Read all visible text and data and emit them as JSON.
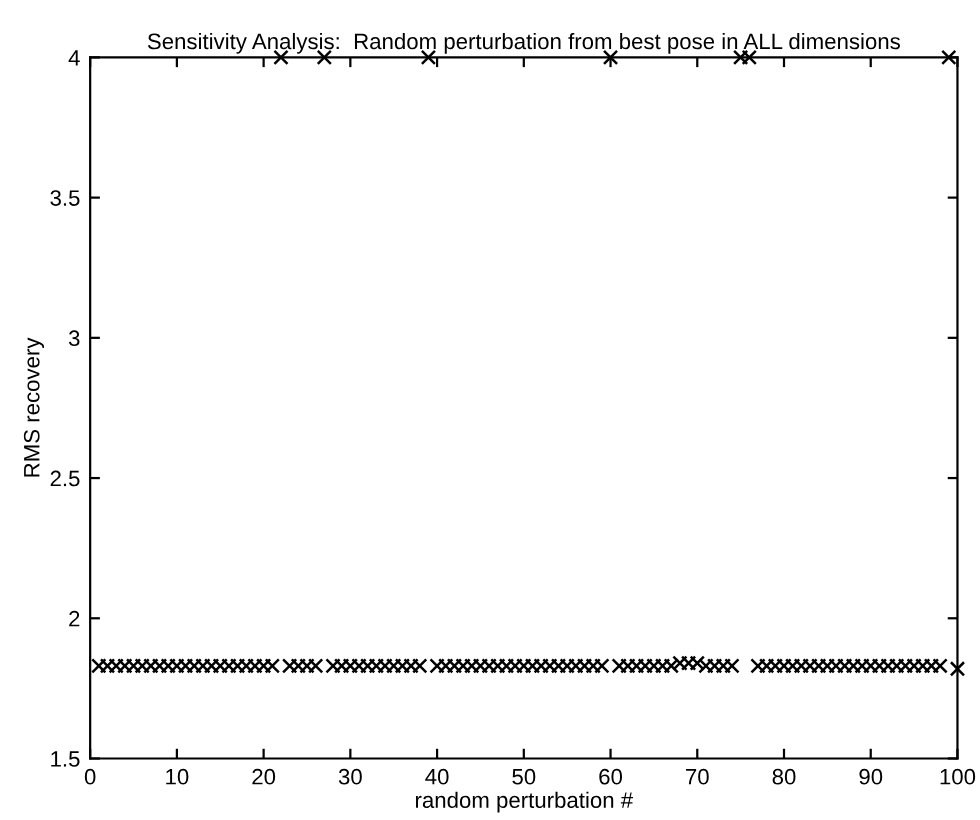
{
  "chart_data": {
    "type": "scatter",
    "title": "Sensitivity Analysis:  Random perturbation from best pose in ALL dimensions",
    "xlabel": "random perturbation #",
    "ylabel": "RMS recovery",
    "x": [
      1,
      2,
      3,
      4,
      5,
      6,
      7,
      8,
      9,
      10,
      11,
      12,
      13,
      14,
      15,
      16,
      17,
      18,
      19,
      20,
      21,
      22,
      23,
      24,
      25,
      26,
      27,
      28,
      29,
      30,
      31,
      32,
      33,
      34,
      35,
      36,
      37,
      38,
      39,
      40,
      41,
      42,
      43,
      44,
      45,
      46,
      47,
      48,
      49,
      50,
      51,
      52,
      53,
      54,
      55,
      56,
      57,
      58,
      59,
      60,
      61,
      62,
      63,
      64,
      65,
      66,
      67,
      68,
      69,
      70,
      71,
      72,
      73,
      74,
      75,
      76,
      77,
      78,
      79,
      80,
      81,
      82,
      83,
      84,
      85,
      86,
      87,
      88,
      89,
      90,
      91,
      92,
      93,
      94,
      95,
      96,
      97,
      98,
      99,
      100
    ],
    "series": [
      {
        "color": "#000000",
        "values": [
          1.83,
          1.83,
          1.83,
          1.83,
          1.83,
          1.83,
          1.83,
          1.83,
          1.83,
          1.83,
          1.83,
          1.83,
          1.83,
          1.83,
          1.83,
          1.83,
          1.83,
          1.83,
          1.83,
          1.83,
          1.83,
          4,
          1.83,
          1.83,
          1.83,
          1.83,
          4,
          1.83,
          1.83,
          1.83,
          1.83,
          1.83,
          1.83,
          1.83,
          1.83,
          1.83,
          1.83,
          1.83,
          4,
          1.83,
          1.83,
          1.83,
          1.83,
          1.83,
          1.83,
          1.83,
          1.83,
          1.83,
          1.83,
          1.83,
          1.83,
          1.83,
          1.83,
          1.83,
          1.83,
          1.83,
          1.83,
          1.83,
          1.83,
          4,
          1.83,
          1.83,
          1.83,
          1.83,
          1.83,
          1.83,
          1.83,
          1.84,
          1.84,
          1.84,
          1.83,
          1.83,
          1.83,
          1.83,
          4,
          4,
          1.83,
          1.83,
          1.83,
          1.83,
          1.83,
          1.83,
          1.83,
          1.83,
          1.83,
          1.83,
          1.83,
          1.83,
          1.83,
          1.83,
          1.83,
          1.83,
          1.83,
          1.83,
          1.83,
          1.83,
          1.83,
          1.83,
          4,
          1.82
        ]
      }
    ],
    "marker": "cross",
    "xlim": [
      0,
      100
    ],
    "xticks": [
      0,
      10,
      20,
      30,
      40,
      50,
      60,
      70,
      80,
      90,
      100
    ],
    "ylim": [
      1.5,
      4
    ],
    "yticks": [
      1.5,
      2,
      2.5,
      3,
      3.5,
      4
    ],
    "grid": false,
    "legend": false
  }
}
